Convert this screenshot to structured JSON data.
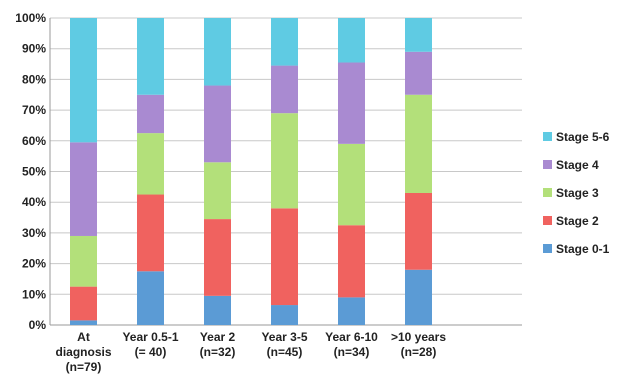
{
  "chart_data": {
    "type": "bar",
    "stacked": true,
    "ylim": [
      0,
      100
    ],
    "y_ticks": [
      "0%",
      "10%",
      "20%",
      "30%",
      "40%",
      "50%",
      "60%",
      "70%",
      "80%",
      "90%",
      "100%"
    ],
    "grid": true,
    "legend_position": "right",
    "categories": [
      [
        "At",
        "diagnosis",
        "(n=79)"
      ],
      [
        "Year 0.5-1",
        "(= 40)"
      ],
      [
        "Year 2",
        "(n=32)"
      ],
      [
        "Year 3-5",
        "(n=45)"
      ],
      [
        "Year 6-10",
        "(n=34)"
      ],
      [
        ">10 years",
        "(n=28)"
      ]
    ],
    "series": [
      {
        "name": "Stage 0-1",
        "color": "#5b9bd5",
        "values": [
          1.5,
          17.5,
          9.5,
          6.5,
          9,
          18
        ]
      },
      {
        "name": "Stage 2",
        "color": "#f0625f",
        "values": [
          11,
          25,
          25,
          31.5,
          23.5,
          25
        ]
      },
      {
        "name": "Stage 3",
        "color": "#b3e07a",
        "values": [
          16.5,
          20,
          18.5,
          31,
          26.5,
          32
        ]
      },
      {
        "name": "Stage 4",
        "color": "#a98ad1",
        "values": [
          30.5,
          12.5,
          25,
          15.5,
          26.5,
          14
        ]
      },
      {
        "name": "Stage 5-6",
        "color": "#5fcbe3",
        "values": [
          40.5,
          25,
          22,
          15.5,
          14.5,
          11
        ]
      }
    ]
  }
}
